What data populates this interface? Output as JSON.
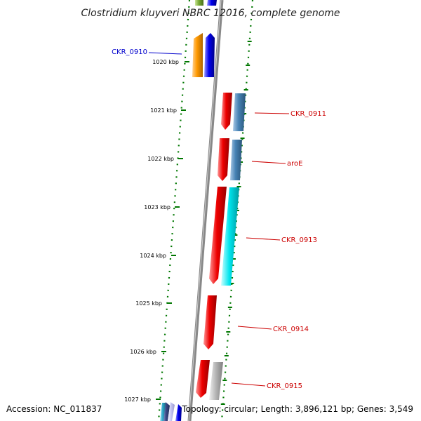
{
  "title": "Clostridium kluyveri NBRC 12016, complete genome",
  "ruler_ticks": [
    {
      "label": "1020 kbp",
      "kbp": 1020
    },
    {
      "label": "1021 kbp",
      "kbp": 1021
    },
    {
      "label": "1022 kbp",
      "kbp": 1022
    },
    {
      "label": "1023 kbp",
      "kbp": 1023
    },
    {
      "label": "1024 kbp",
      "kbp": 1024
    },
    {
      "label": "1025 kbp",
      "kbp": 1025
    },
    {
      "label": "1026 kbp",
      "kbp": 1026
    },
    {
      "label": "1027 kbp",
      "kbp": 1027
    }
  ],
  "gene_labels": [
    {
      "name": "CKR_0910",
      "color": "#0000cc"
    },
    {
      "name": "CKR_0911",
      "color": "#cc0000"
    },
    {
      "name": "aroE",
      "color": "#cc0000"
    },
    {
      "name": "CKR_0913",
      "color": "#cc0000"
    },
    {
      "name": "CKR_0914",
      "color": "#cc0000"
    },
    {
      "name": "CKR_0915",
      "color": "#cc0000"
    }
  ],
  "colors": {
    "strand_minus": "#0000ff",
    "strand_plus": "#ee0000",
    "tick_green": "#007700",
    "axis_gray": "#888888",
    "cog_orange": "#ff9900",
    "cog_olive": "#77aa33",
    "cog_steelblue": "#4682b4",
    "cog_cyan": "#00e5ee",
    "cog_silver": "#b0b0b0",
    "cog_navy": "#3b4a8a",
    "cog_teal": "#33aacc"
  },
  "footer": {
    "accession": "Accession: NC_011837",
    "topology": "Topology: circular; Length: 3,896,121 bp; Genes: 3,549"
  }
}
